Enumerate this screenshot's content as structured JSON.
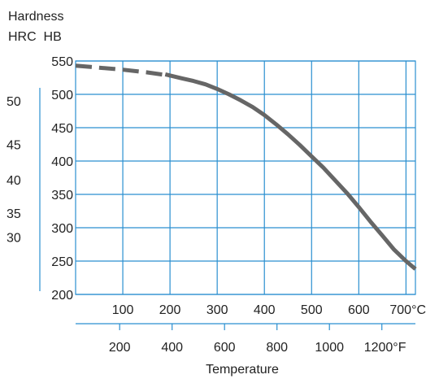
{
  "chart_data": {
    "type": "line",
    "title_lines": [
      "Hardness",
      "HRC  HB"
    ],
    "xlabel": "Temperature",
    "x_unit_c": "°C",
    "x_unit_f": "°F",
    "xlim_c": [
      0,
      720
    ],
    "ylim_hb": [
      200,
      550
    ],
    "grid": true,
    "x_ticks_c": [
      100,
      200,
      300,
      400,
      500,
      600,
      700
    ],
    "x_tick_labels_c": [
      "100",
      "200",
      "300",
      "400",
      "500",
      "600",
      "700°C"
    ],
    "x_ticks_f": [
      200,
      400,
      600,
      800,
      1000,
      1200
    ],
    "x_tick_labels_f": [
      "200",
      "400",
      "600",
      "800",
      "1000",
      "1200°F"
    ],
    "y_ticks_hb": [
      200,
      250,
      300,
      350,
      400,
      450,
      500,
      550
    ],
    "y_tick_labels_hb": [
      "200",
      "250",
      "300",
      "350",
      "400",
      "450",
      "500",
      "550"
    ],
    "y_ticks_hrc": [
      {
        "label": "50",
        "hb": 490
      },
      {
        "label": "45",
        "hb": 425
      },
      {
        "label": "40",
        "hb": 372
      },
      {
        "label": "35",
        "hb": 322
      },
      {
        "label": "30",
        "hb": 286
      }
    ],
    "series": [
      {
        "line_color": "#666666",
        "dashed_segment": {
          "x": [
            0,
            50,
            100,
            150,
            200
          ],
          "y": [
            543,
            540,
            537,
            533,
            528
          ]
        },
        "solid_segment": {
          "x": [
            190,
            225,
            250,
            275,
            300,
            325,
            350,
            375,
            400,
            425,
            450,
            475,
            500,
            525,
            550,
            575,
            600,
            625,
            650,
            675,
            700,
            720
          ],
          "y": [
            530,
            524,
            520,
            515,
            508,
            500,
            491,
            481,
            469,
            455,
            440,
            424,
            407,
            390,
            371,
            352,
            331,
            309,
            288,
            267,
            250,
            238
          ]
        }
      }
    ],
    "colors": {
      "grid": "#2a8fd0",
      "axis_f": "#2a8fd0",
      "left_axis": "#2a8fd0",
      "curve": "#666666"
    }
  }
}
